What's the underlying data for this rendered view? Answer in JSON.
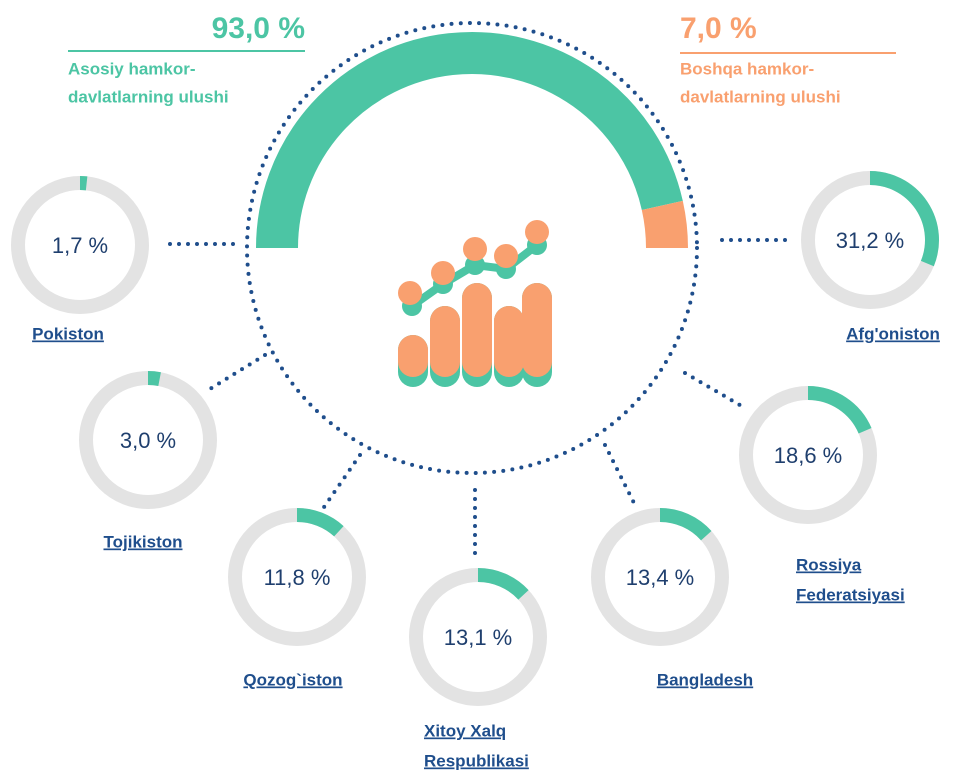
{
  "chart_data": {
    "type": "donut",
    "main": {
      "values": [
        93,
        7
      ],
      "value_labels": [
        "93,0 %",
        "7,0 %"
      ],
      "names": [
        [
          "Asosiy hamkor-",
          "davlatlarning ulushi"
        ],
        [
          "Boshqa hamkor-",
          "davlatlarning ulushi"
        ]
      ],
      "colors": [
        "#4cc5a4",
        "#f9a06f"
      ]
    },
    "categories": [
      [
        "Pokiston"
      ],
      [
        "Tojikiston"
      ],
      [
        "Qozog`iston"
      ],
      [
        "Xitoy Xalq",
        "Respublikasi"
      ],
      [
        "Bangladesh"
      ],
      [
        "Rossiya",
        "Federatsiyasi"
      ],
      [
        "Afg'oniston"
      ]
    ],
    "values": [
      1.7,
      3.0,
      11.8,
      13.1,
      13.4,
      18.6,
      31.2
    ],
    "value_labels": [
      "1,7 %",
      "3,0 %",
      "11,8 %",
      "13,1 %",
      "13,4 %",
      "18,6 %",
      "31,2 %"
    ],
    "color": "#4cc5a4"
  }
}
